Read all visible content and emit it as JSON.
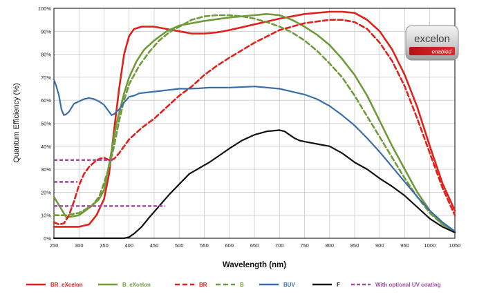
{
  "chart_data": {
    "type": "line",
    "title": "",
    "xlabel": "Wavelength (nm)",
    "ylabel": "Quantum Efficiency (%)",
    "xlim": [
      250,
      1050
    ],
    "ylim": [
      0,
      100
    ],
    "x_ticks": [
      250,
      300,
      350,
      400,
      450,
      500,
      550,
      600,
      650,
      700,
      750,
      800,
      850,
      900,
      950,
      1000,
      1050
    ],
    "y_ticks": [
      0,
      10,
      20,
      30,
      40,
      50,
      60,
      70,
      80,
      90,
      100
    ],
    "y_tick_labels": [
      "0%",
      "10%",
      "20%",
      "30%",
      "40%",
      "50%",
      "60%",
      "70%",
      "80%",
      "90%",
      "100%"
    ],
    "grid": true,
    "legend_position": "bottom",
    "logo": {
      "text": "excelon",
      "subtext": "enabled"
    },
    "series": [
      {
        "name": "BR_eXcelon",
        "color": "#e0201b",
        "dash": "solid",
        "x": [
          250,
          275,
          300,
          320,
          335,
          350,
          360,
          370,
          380,
          390,
          400,
          410,
          425,
          450,
          475,
          500,
          525,
          550,
          575,
          600,
          650,
          700,
          750,
          800,
          825,
          850,
          875,
          900,
          925,
          950,
          975,
          1000,
          1025,
          1050
        ],
        "y": [
          5,
          5,
          5,
          6,
          10,
          17,
          28,
          47,
          65,
          80,
          88,
          91,
          92,
          92,
          91,
          90,
          89,
          89,
          89.5,
          90.5,
          93,
          95.5,
          97.5,
          98.5,
          98.5,
          98,
          95,
          90,
          82,
          71,
          57,
          40,
          24,
          12
        ]
      },
      {
        "name": "B_eXcelon",
        "color": "#6f9a3a",
        "dash": "solid",
        "x": [
          250,
          275,
          300,
          325,
          340,
          350,
          360,
          375,
          390,
          400,
          415,
          430,
          450,
          475,
          500,
          525,
          550,
          600,
          650,
          675,
          700,
          725,
          750,
          775,
          800,
          825,
          850,
          875,
          900,
          925,
          950,
          975,
          1000,
          1025,
          1050
        ],
        "y": [
          18,
          9,
          10,
          14,
          17,
          21,
          32,
          50,
          63,
          70,
          77,
          82,
          86,
          90,
          92.5,
          93.5,
          94.5,
          96,
          97,
          97.5,
          97,
          95,
          92,
          88.5,
          84,
          78,
          71,
          62,
          51,
          40,
          30,
          20,
          12,
          6,
          3
        ]
      },
      {
        "name": "BR",
        "color": "#e0201b",
        "dash": "dashed",
        "x": [
          250,
          260,
          270,
          280,
          290,
          300,
          310,
          320,
          330,
          340,
          350,
          360,
          370,
          380,
          400,
          425,
          450,
          475,
          500,
          525,
          550,
          575,
          600,
          650,
          700,
          750,
          800,
          825,
          850,
          875,
          900,
          925,
          950,
          975,
          1000,
          1025,
          1050
        ],
        "y": [
          7,
          6,
          6.5,
          10,
          16,
          23,
          28,
          31,
          33,
          34.5,
          35,
          34,
          34.5,
          37,
          43,
          48,
          52,
          57,
          62,
          66,
          71,
          75,
          78.5,
          85,
          90.5,
          93.5,
          95,
          95,
          94,
          91,
          85,
          77,
          66,
          52,
          37,
          22,
          10
        ]
      },
      {
        "name": "B",
        "color": "#6f9a3a",
        "dash": "dashed",
        "x": [
          250,
          275,
          300,
          325,
          340,
          350,
          360,
          370,
          380,
          390,
          400,
          420,
          440,
          460,
          480,
          500,
          525,
          550,
          575,
          600,
          625,
          650,
          675,
          700,
          725,
          750,
          775,
          800,
          825,
          850,
          875,
          900,
          925,
          950,
          975,
          1000,
          1025,
          1050
        ],
        "y": [
          10,
          10,
          11,
          14,
          18,
          24,
          31,
          40,
          51,
          60,
          67,
          75,
          81,
          86,
          89.5,
          92,
          95,
          96.5,
          97,
          97,
          96.5,
          95.5,
          94,
          92,
          89.5,
          86,
          81.5,
          76,
          70,
          62,
          53,
          44,
          35,
          26,
          18,
          11,
          6,
          3
        ]
      },
      {
        "name": "BUV",
        "color": "#3a6ea8",
        "dash": "solid",
        "x": [
          250,
          255,
          260,
          265,
          270,
          275,
          280,
          290,
          300,
          310,
          320,
          330,
          340,
          350,
          355,
          360,
          365,
          370,
          380,
          390,
          400,
          410,
          420,
          440,
          460,
          480,
          500,
          520,
          540,
          560,
          600,
          650,
          700,
          750,
          775,
          800,
          825,
          850,
          875,
          900,
          925,
          950,
          975,
          1000,
          1025,
          1050
        ],
        "y": [
          69,
          66,
          62,
          56,
          53.5,
          54,
          55,
          58.5,
          59.5,
          60.5,
          61,
          60.5,
          59.5,
          58,
          56.5,
          55,
          53.5,
          54,
          56,
          59,
          61.5,
          62,
          63,
          63.5,
          64,
          64.5,
          65,
          65,
          65.2,
          65.5,
          65.5,
          66,
          65,
          62.5,
          60.5,
          57.5,
          53.5,
          49,
          43.5,
          37.5,
          31,
          24.5,
          18,
          12,
          7,
          3
        ]
      },
      {
        "name": "F",
        "color": "#111111",
        "dash": "solid",
        "x": [
          250,
          360,
          390,
          400,
          410,
          425,
          440,
          460,
          480,
          500,
          520,
          540,
          560,
          580,
          600,
          625,
          650,
          675,
          700,
          710,
          720,
          730,
          740,
          750,
          775,
          800,
          825,
          850,
          875,
          900,
          925,
          950,
          975,
          1000,
          1025,
          1050
        ],
        "y": [
          0,
          0,
          0,
          0.5,
          2,
          5,
          9,
          14,
          19,
          23.5,
          28,
          30.5,
          33,
          36,
          39,
          42.5,
          45,
          46.5,
          47,
          46.5,
          45,
          43.5,
          42.5,
          42,
          41,
          40,
          37,
          33,
          30,
          26,
          22.5,
          18.5,
          13.5,
          8.5,
          5,
          2.5
        ]
      },
      {
        "name": "With optional UV coating",
        "color": "#a24aa6",
        "dash": "dashed",
        "segments": [
          {
            "x": [
              250,
              370
            ],
            "y": [
              34,
              34
            ]
          },
          {
            "x": [
              250,
              297
            ],
            "y": [
              24.5,
              24.5
            ]
          },
          {
            "x": [
              250,
              472
            ],
            "y": [
              14,
              14
            ]
          }
        ]
      }
    ]
  }
}
